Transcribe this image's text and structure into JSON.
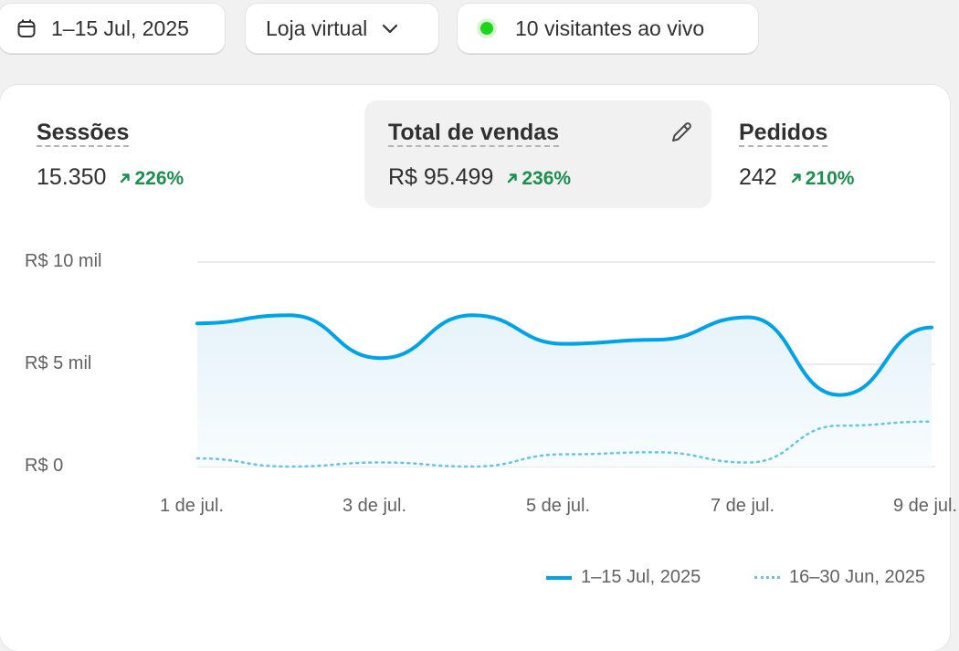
{
  "toolbar": {
    "date_range": "1–15 Jul, 2025",
    "channel": "Loja virtual",
    "live": "10 visitantes ao vivo"
  },
  "metrics": {
    "sessions": {
      "label": "Sessões",
      "value": "15.350",
      "change": "226%"
    },
    "sales": {
      "label": "Total de vendas",
      "value": "R$ 95.499",
      "change": "236%"
    },
    "orders": {
      "label": "Pedidos",
      "value": "242",
      "change": "210%"
    }
  },
  "colors": {
    "primary": "#00a2e8",
    "comparison": "#64c5ec",
    "positive": "#1a8f4e",
    "live": "#1ed51e"
  },
  "icons": {
    "date": "calendar-icon",
    "dropdown": "chevron-down-icon",
    "edit": "pencil-icon",
    "trend": "arrow-up-right-icon",
    "live": "live-dot-icon"
  },
  "chart_data": {
    "type": "line",
    "y_tick_labels": [
      "R$ 10 mil",
      "R$ 5 mil",
      "R$ 0"
    ],
    "y_ticks": [
      10000,
      5000,
      0
    ],
    "ylim": [
      0,
      10000
    ],
    "x_tick_labels": [
      "1 de jul.",
      "3 de jul.",
      "5 de jul.",
      "7 de jul.",
      "9 de jul."
    ],
    "x": [
      "1 de jul.",
      "2 de jul.",
      "3 de jul.",
      "4 de jul.",
      "5 de jul.",
      "6 de jul.",
      "7 de jul.",
      "8 de jul.",
      "9 de jul."
    ],
    "grid": true,
    "series": [
      {
        "name": "1–15 Jul, 2025",
        "style": "solid",
        "values": [
          7000,
          7400,
          5300,
          7400,
          6000,
          6200,
          7300,
          3500,
          6800
        ]
      },
      {
        "name": "16–30 Jun, 2025",
        "style": "dotted",
        "values": [
          400,
          0,
          200,
          0,
          600,
          700,
          200,
          2000,
          2200
        ]
      }
    ]
  }
}
